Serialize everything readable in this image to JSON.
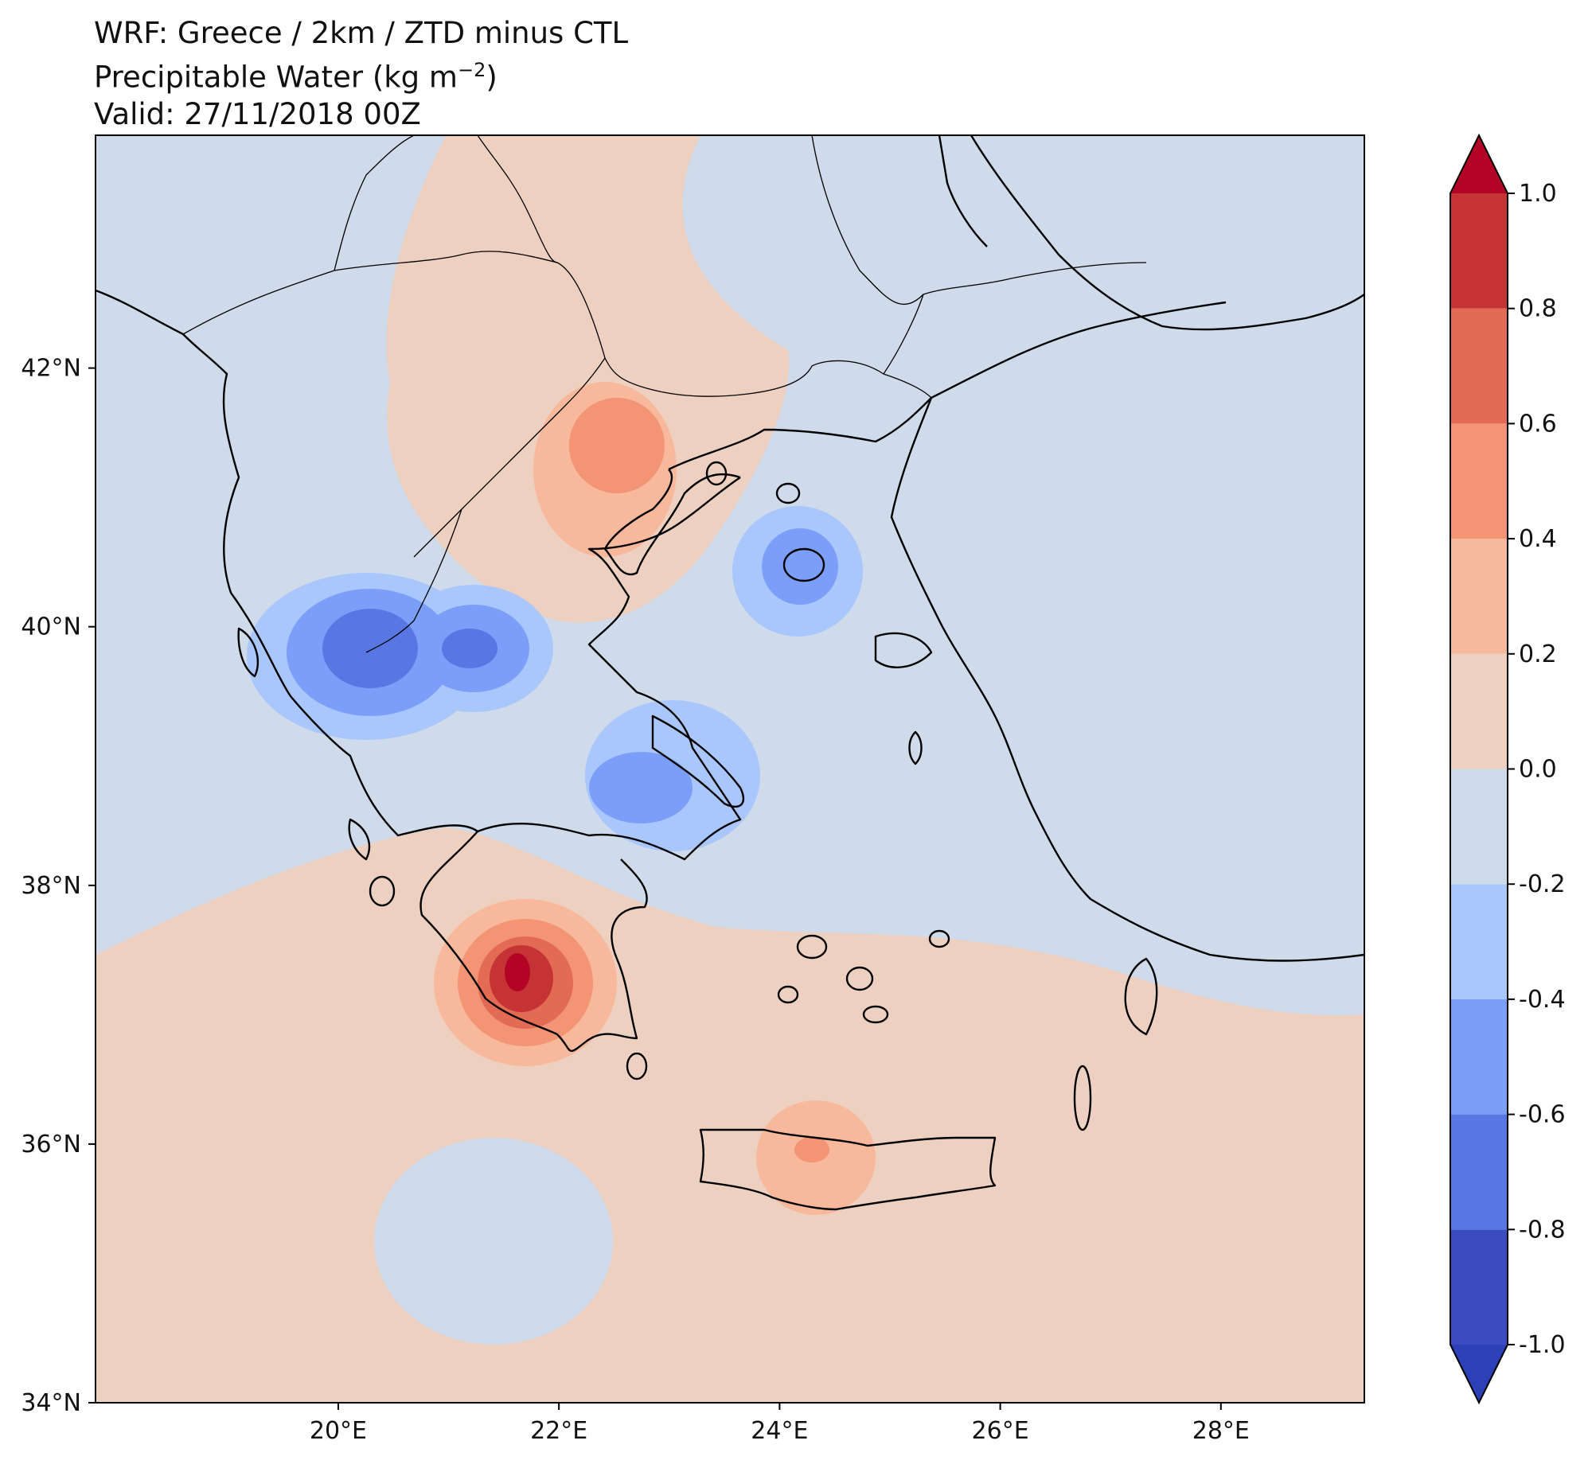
{
  "title": {
    "line1": "WRF: Greece / 2km / ZTD minus CTL",
    "line2_prefix": "Precipitable Water (kg m",
    "line2_exp": "−2",
    "line2_suffix": ")",
    "line3": "Valid: 27/11/2018 00Z"
  },
  "chart_data": {
    "type": "filled-contour map",
    "field": "Precipitable Water difference (ZTD minus CTL)",
    "units": "kg m^-2",
    "x_axis": {
      "range": [
        17.8,
        29.3
      ],
      "ticks": [
        20,
        22,
        24,
        26,
        28
      ],
      "tick_labels": [
        "20°E",
        "22°E",
        "24°E",
        "26°E",
        "28°E"
      ]
    },
    "y_axis": {
      "range": [
        34.0,
        43.8
      ],
      "ticks": [
        34,
        36,
        38,
        40,
        42
      ],
      "tick_labels": [
        "34°N",
        "36°N",
        "38°N",
        "40°N",
        "42°N"
      ]
    },
    "colorbar": {
      "levels": [
        -1.0,
        -0.8,
        -0.6,
        -0.4,
        -0.2,
        0.0,
        0.2,
        0.4,
        0.6,
        0.8,
        1.0
      ],
      "tick_labels": [
        "-1.0",
        "-0.8",
        "-0.6",
        "-0.4",
        "-0.2",
        "0.0",
        "0.2",
        "0.4",
        "0.6",
        "0.8",
        "1.0"
      ],
      "colors": [
        "#3b4cc0",
        "#5977e3",
        "#7b9ff9",
        "#a9c6fd",
        "#cfdaea",
        "#eed0c0",
        "#f7b89c",
        "#f39475",
        "#e36a53",
        "#c53334"
      ],
      "extend_low_color": "#2c41b8",
      "extend_high_color": "#b40426"
    },
    "anomalies": [
      {
        "name": "SW Peloponnese maximum",
        "lon": 21.6,
        "lat": 37.2,
        "peak": 0.9,
        "sign": "positive"
      },
      {
        "name": "Central Macedonia maximum",
        "lon": 22.5,
        "lat": 41.3,
        "peak": 0.5,
        "sign": "positive"
      },
      {
        "name": "Central Crete maximum",
        "lon": 24.2,
        "lat": 35.8,
        "peak": 0.3,
        "sign": "positive"
      },
      {
        "name": "Epirus minimum",
        "lon": 20.2,
        "lat": 39.8,
        "peak": -0.7,
        "sign": "negative"
      },
      {
        "name": "Thessaly minimum",
        "lon": 21.1,
        "lat": 39.8,
        "peak": -0.6,
        "sign": "negative"
      },
      {
        "name": "Central Greece minimum",
        "lon": 22.8,
        "lat": 38.7,
        "peak": -0.5,
        "sign": "negative"
      },
      {
        "name": "Athos / north Aegean minimum",
        "lon": 24.1,
        "lat": 40.4,
        "peak": -0.6,
        "sign": "negative"
      }
    ]
  }
}
